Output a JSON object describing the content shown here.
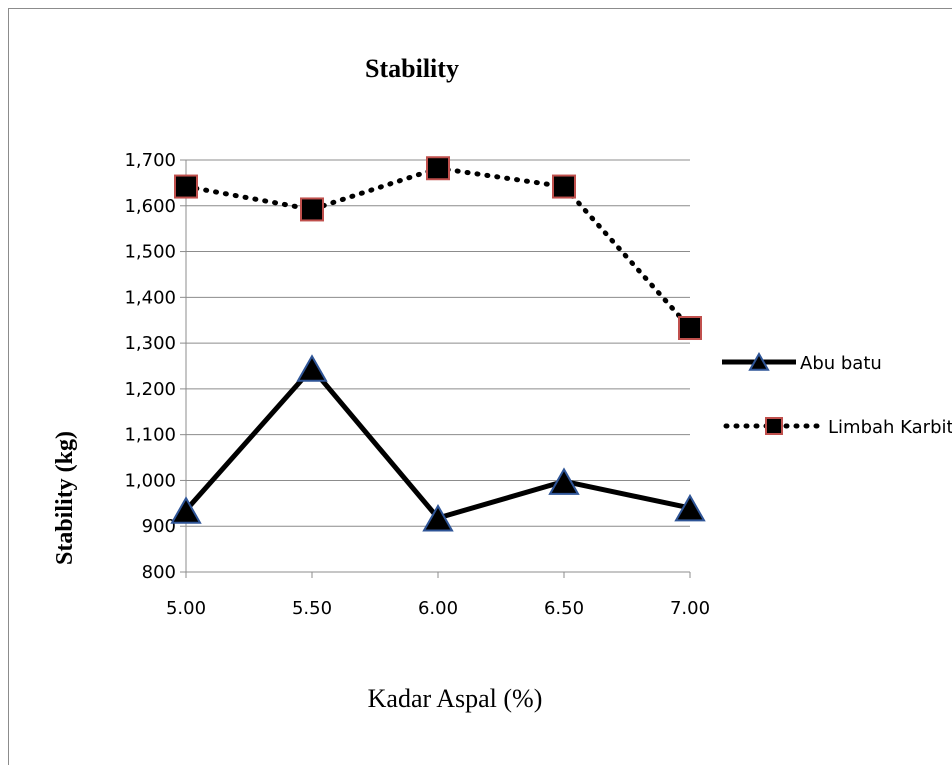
{
  "chart_data": {
    "type": "line",
    "title": "Stability",
    "xlabel": "Kadar Aspal (%)",
    "ylabel": "Stability (kg)",
    "x": [
      "5.00",
      "5.50",
      "6.00",
      "6.50",
      "7.00"
    ],
    "x_values": [
      5.0,
      5.5,
      6.0,
      6.5,
      7.0
    ],
    "ylim": [
      800,
      1700
    ],
    "yticks": [
      800,
      900,
      1000,
      1100,
      1200,
      1300,
      1400,
      1500,
      1600,
      1700
    ],
    "ytick_labels": [
      "800",
      "900",
      "1,000",
      "1,100",
      "1,200",
      "1,300",
      "1,400",
      "1,500",
      "1,600",
      "1,700"
    ],
    "grid": true,
    "legend_position": "right",
    "series": [
      {
        "name": "Abu batu",
        "values": [
          935,
          1245,
          918,
          998,
          940
        ],
        "line_style": "solid",
        "marker": "triangle",
        "color": "#000000",
        "marker_edge": "#2f5597"
      },
      {
        "name": "Limbah Karbit",
        "values": [
          1642,
          1592,
          1682,
          1642,
          1333
        ],
        "line_style": "dotted",
        "marker": "square",
        "color": "#000000",
        "marker_edge": "#c0504d"
      }
    ]
  }
}
